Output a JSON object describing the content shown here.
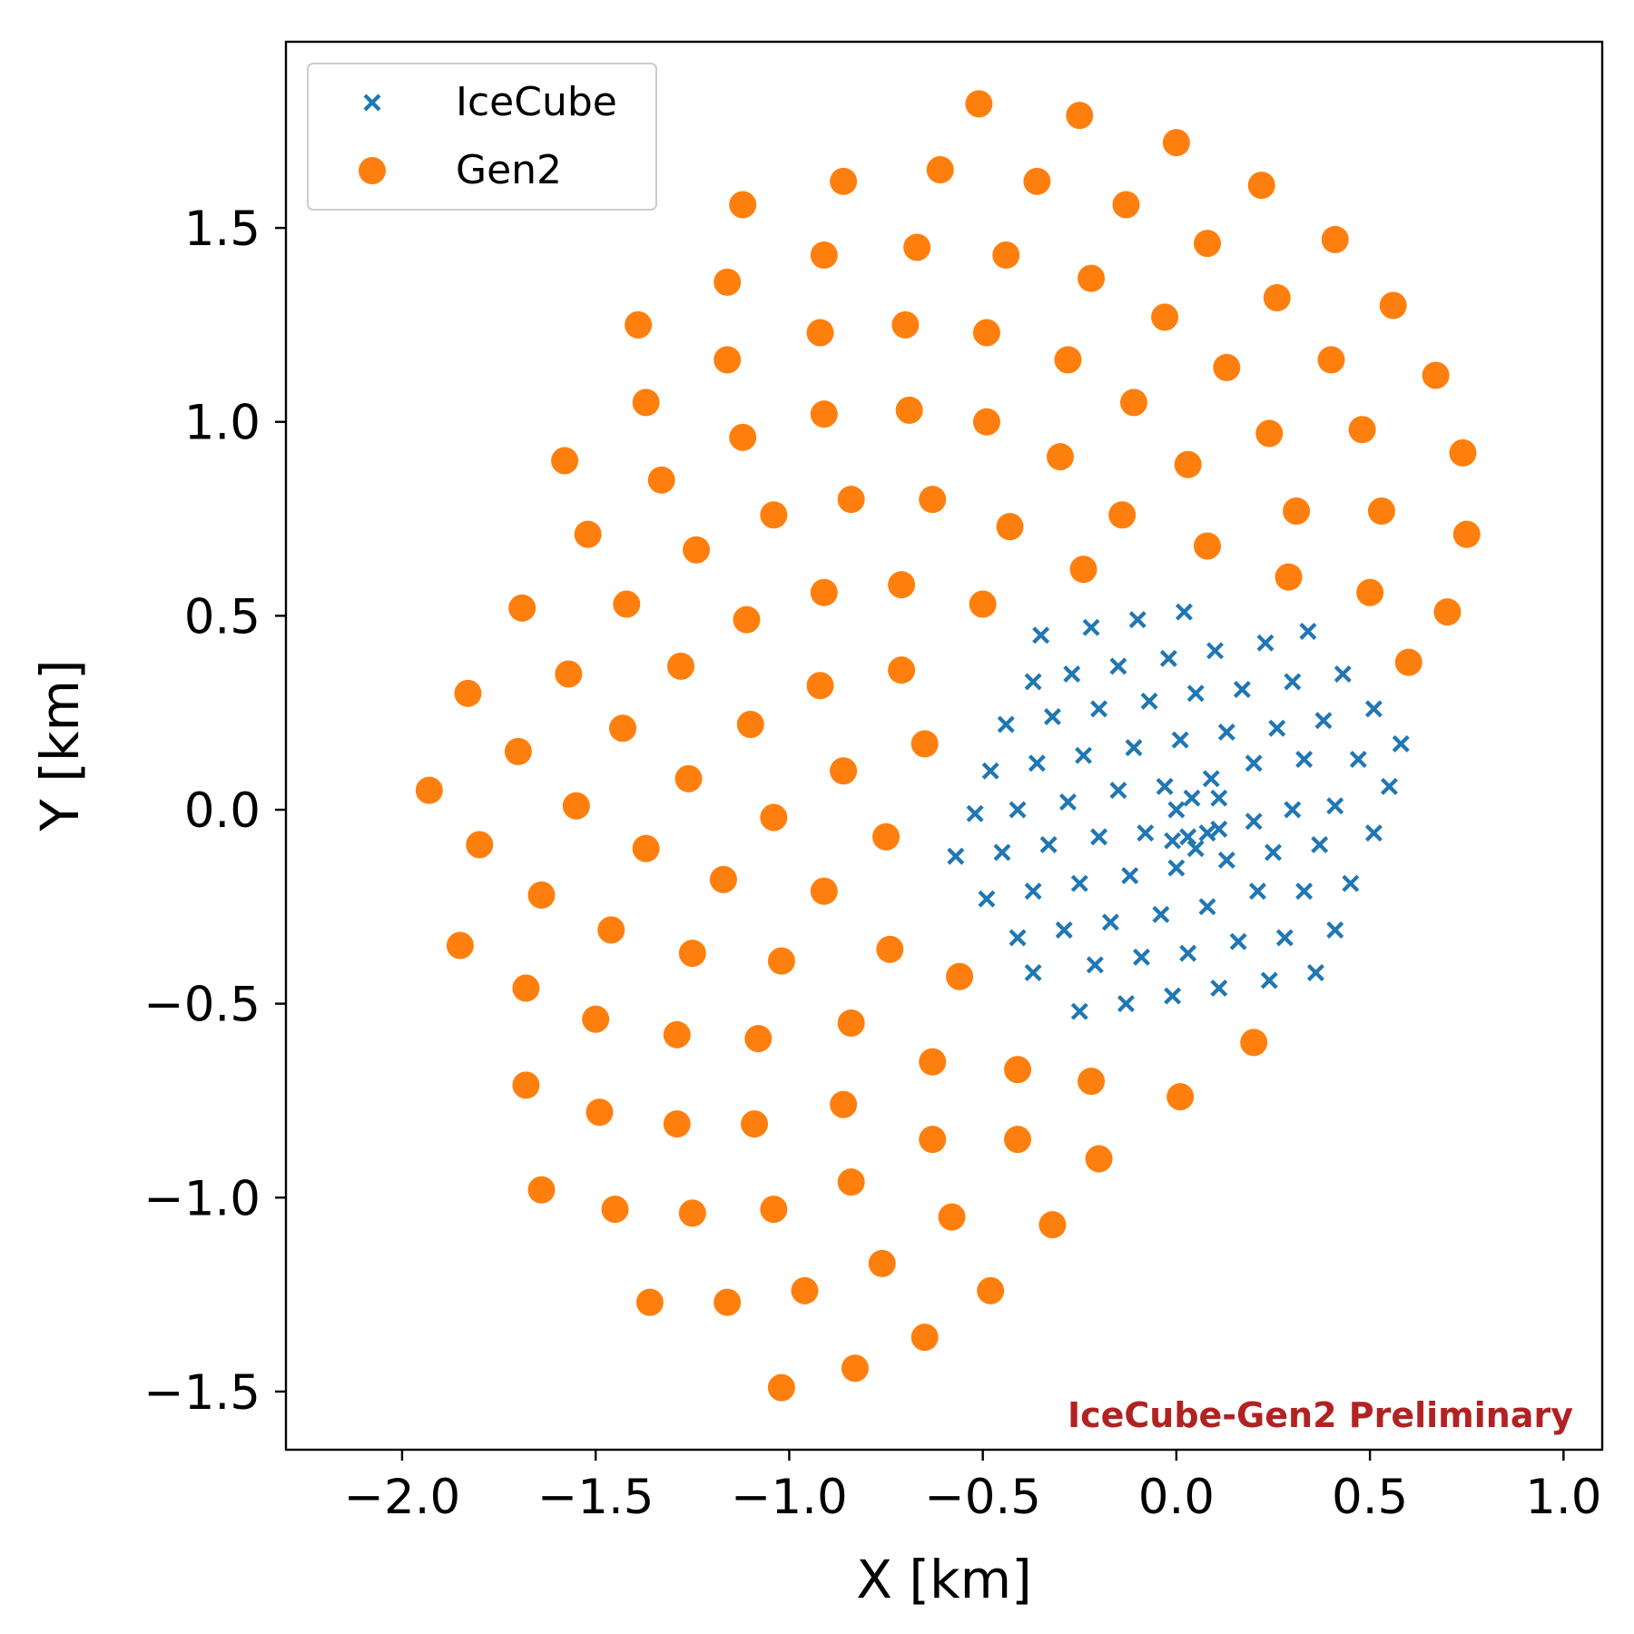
{
  "chart_data": {
    "type": "scatter",
    "title": "",
    "xlabel": "X [km]",
    "ylabel": "Y [km]",
    "xlim": [
      -2.3,
      1.1
    ],
    "ylim": [
      -1.65,
      1.98
    ],
    "xticks": [
      -2.0,
      -1.5,
      -1.0,
      -0.5,
      0.0,
      0.5,
      1.0
    ],
    "yticks": [
      -1.5,
      -1.0,
      -0.5,
      0.0,
      0.5,
      1.0,
      1.5
    ],
    "xtick_labels": [
      "−2.0",
      "−1.5",
      "−1.0",
      "−0.5",
      "0.0",
      "0.5",
      "1.0"
    ],
    "ytick_labels": [
      "−1.5",
      "−1.0",
      "−0.5",
      "0.0",
      "0.5",
      "1.0",
      "1.5"
    ],
    "grid": false,
    "legend_position": "top-left",
    "annotation": {
      "text": "IceCube-Gen2 Preliminary",
      "position": "bottom-right",
      "color": "#b22222"
    },
    "series": [
      {
        "name": "IceCube",
        "marker": "x",
        "color": "#1f77b4",
        "points": [
          [
            -0.35,
            0.45
          ],
          [
            -0.22,
            0.47
          ],
          [
            -0.1,
            0.49
          ],
          [
            0.02,
            0.51
          ],
          [
            0.23,
            0.43
          ],
          [
            0.34,
            0.46
          ],
          [
            -0.37,
            0.33
          ],
          [
            -0.27,
            0.35
          ],
          [
            -0.15,
            0.37
          ],
          [
            -0.02,
            0.39
          ],
          [
            0.1,
            0.41
          ],
          [
            0.17,
            0.31
          ],
          [
            0.3,
            0.33
          ],
          [
            0.43,
            0.35
          ],
          [
            -0.44,
            0.22
          ],
          [
            -0.32,
            0.24
          ],
          [
            -0.2,
            0.26
          ],
          [
            -0.07,
            0.28
          ],
          [
            0.05,
            0.3
          ],
          [
            0.13,
            0.2
          ],
          [
            0.26,
            0.21
          ],
          [
            0.38,
            0.23
          ],
          [
            0.51,
            0.26
          ],
          [
            0.58,
            0.17
          ],
          [
            -0.48,
            0.1
          ],
          [
            -0.36,
            0.12
          ],
          [
            -0.24,
            0.14
          ],
          [
            -0.11,
            0.16
          ],
          [
            0.01,
            0.18
          ],
          [
            0.2,
            0.12
          ],
          [
            0.33,
            0.13
          ],
          [
            0.47,
            0.13
          ],
          [
            0.55,
            0.06
          ],
          [
            -0.52,
            -0.01
          ],
          [
            -0.41,
            0.0
          ],
          [
            -0.28,
            0.02
          ],
          [
            -0.15,
            0.05
          ],
          [
            -0.03,
            0.06
          ],
          [
            0.0,
            0.0
          ],
          [
            0.04,
            0.03
          ],
          [
            0.09,
            0.08
          ],
          [
            0.11,
            0.03
          ],
          [
            0.3,
            0.0
          ],
          [
            0.41,
            0.01
          ],
          [
            0.51,
            -0.06
          ],
          [
            -0.57,
            -0.12
          ],
          [
            -0.45,
            -0.11
          ],
          [
            -0.33,
            -0.09
          ],
          [
            -0.2,
            -0.07
          ],
          [
            -0.08,
            -0.06
          ],
          [
            -0.01,
            -0.08
          ],
          [
            0.03,
            -0.07
          ],
          [
            0.05,
            -0.1
          ],
          [
            0.08,
            -0.06
          ],
          [
            0.11,
            -0.05
          ],
          [
            0.13,
            -0.13
          ],
          [
            0.2,
            -0.03
          ],
          [
            0.25,
            -0.11
          ],
          [
            0.37,
            -0.09
          ],
          [
            -0.49,
            -0.23
          ],
          [
            -0.37,
            -0.21
          ],
          [
            -0.25,
            -0.19
          ],
          [
            -0.12,
            -0.17
          ],
          [
            0.0,
            -0.15
          ],
          [
            0.08,
            -0.25
          ],
          [
            0.21,
            -0.21
          ],
          [
            0.33,
            -0.21
          ],
          [
            0.45,
            -0.19
          ],
          [
            -0.41,
            -0.33
          ],
          [
            -0.29,
            -0.31
          ],
          [
            -0.17,
            -0.29
          ],
          [
            -0.04,
            -0.27
          ],
          [
            0.16,
            -0.34
          ],
          [
            0.28,
            -0.33
          ],
          [
            0.41,
            -0.31
          ],
          [
            -0.37,
            -0.42
          ],
          [
            -0.21,
            -0.4
          ],
          [
            -0.09,
            -0.38
          ],
          [
            0.03,
            -0.37
          ],
          [
            0.11,
            -0.46
          ],
          [
            0.24,
            -0.44
          ],
          [
            0.36,
            -0.42
          ],
          [
            -0.25,
            -0.52
          ],
          [
            -0.13,
            -0.5
          ],
          [
            -0.01,
            -0.48
          ]
        ]
      },
      {
        "name": "Gen2",
        "marker": "o",
        "color": "#ff7f0e",
        "points": [
          [
            -0.51,
            1.82
          ],
          [
            -0.25,
            1.79
          ],
          [
            0.0,
            1.72
          ],
          [
            0.22,
            1.61
          ],
          [
            0.41,
            1.47
          ],
          [
            0.56,
            1.3
          ],
          [
            0.67,
            1.12
          ],
          [
            0.74,
            0.92
          ],
          [
            0.75,
            0.71
          ],
          [
            0.7,
            0.51
          ],
          [
            0.6,
            0.38
          ],
          [
            -0.86,
            1.62
          ],
          [
            -0.61,
            1.65
          ],
          [
            -0.36,
            1.62
          ],
          [
            -0.13,
            1.56
          ],
          [
            0.08,
            1.46
          ],
          [
            0.26,
            1.32
          ],
          [
            0.4,
            1.16
          ],
          [
            0.48,
            0.98
          ],
          [
            0.53,
            0.77
          ],
          [
            0.5,
            0.56
          ],
          [
            -1.12,
            1.56
          ],
          [
            -0.91,
            1.43
          ],
          [
            -0.67,
            1.45
          ],
          [
            -0.44,
            1.43
          ],
          [
            -0.22,
            1.37
          ],
          [
            -0.03,
            1.27
          ],
          [
            0.13,
            1.14
          ],
          [
            0.24,
            0.97
          ],
          [
            0.31,
            0.77
          ],
          [
            0.29,
            0.6
          ],
          [
            -1.16,
            1.36
          ],
          [
            -0.92,
            1.23
          ],
          [
            -0.7,
            1.25
          ],
          [
            -0.49,
            1.23
          ],
          [
            -0.28,
            1.16
          ],
          [
            -0.11,
            1.05
          ],
          [
            0.03,
            0.89
          ],
          [
            0.08,
            0.68
          ],
          [
            -1.39,
            1.25
          ],
          [
            -1.37,
            1.05
          ],
          [
            -1.16,
            1.16
          ],
          [
            -1.12,
            0.96
          ],
          [
            -0.91,
            1.02
          ],
          [
            -0.69,
            1.03
          ],
          [
            -0.49,
            1.0
          ],
          [
            -0.3,
            0.91
          ],
          [
            -0.14,
            0.76
          ],
          [
            -0.24,
            0.62
          ],
          [
            -1.58,
            0.9
          ],
          [
            -1.33,
            0.85
          ],
          [
            -1.04,
            0.76
          ],
          [
            -0.84,
            0.8
          ],
          [
            -0.63,
            0.8
          ],
          [
            -0.43,
            0.73
          ],
          [
            -1.52,
            0.71
          ],
          [
            -1.24,
            0.67
          ],
          [
            -0.91,
            0.56
          ],
          [
            -0.71,
            0.58
          ],
          [
            -0.5,
            0.53
          ],
          [
            -1.69,
            0.52
          ],
          [
            -1.42,
            0.53
          ],
          [
            -1.11,
            0.49
          ],
          [
            -1.83,
            0.3
          ],
          [
            -1.57,
            0.35
          ],
          [
            -1.28,
            0.37
          ],
          [
            -0.92,
            0.32
          ],
          [
            -0.71,
            0.36
          ],
          [
            -1.7,
            0.15
          ],
          [
            -1.43,
            0.21
          ],
          [
            -1.1,
            0.22
          ],
          [
            -0.86,
            0.1
          ],
          [
            -0.65,
            0.17
          ],
          [
            -1.93,
            0.05
          ],
          [
            -1.55,
            0.01
          ],
          [
            -1.26,
            0.08
          ],
          [
            -1.04,
            -0.02
          ],
          [
            -0.75,
            -0.07
          ],
          [
            -1.8,
            -0.09
          ],
          [
            -1.37,
            -0.1
          ],
          [
            -1.17,
            -0.18
          ],
          [
            -0.91,
            -0.21
          ],
          [
            -1.64,
            -0.22
          ],
          [
            -1.46,
            -0.31
          ],
          [
            -1.25,
            -0.37
          ],
          [
            -1.02,
            -0.39
          ],
          [
            -0.74,
            -0.36
          ],
          [
            -0.56,
            -0.43
          ],
          [
            -1.85,
            -0.35
          ],
          [
            -1.68,
            -0.46
          ],
          [
            -1.5,
            -0.54
          ],
          [
            -1.29,
            -0.58
          ],
          [
            -1.08,
            -0.59
          ],
          [
            -0.84,
            -0.55
          ],
          [
            -0.63,
            -0.65
          ],
          [
            -0.41,
            -0.67
          ],
          [
            -0.22,
            -0.7
          ],
          [
            0.01,
            -0.74
          ],
          [
            0.2,
            -0.6
          ],
          [
            -1.68,
            -0.71
          ],
          [
            -1.49,
            -0.78
          ],
          [
            -1.29,
            -0.81
          ],
          [
            -1.09,
            -0.81
          ],
          [
            -0.86,
            -0.76
          ],
          [
            -0.63,
            -0.85
          ],
          [
            -0.41,
            -0.85
          ],
          [
            -0.2,
            -0.9
          ],
          [
            -1.64,
            -0.98
          ],
          [
            -1.45,
            -1.03
          ],
          [
            -1.25,
            -1.04
          ],
          [
            -1.04,
            -1.03
          ],
          [
            -0.84,
            -0.96
          ],
          [
            -0.58,
            -1.05
          ],
          [
            -0.32,
            -1.07
          ],
          [
            -1.36,
            -1.27
          ],
          [
            -1.16,
            -1.27
          ],
          [
            -0.96,
            -1.24
          ],
          [
            -0.76,
            -1.17
          ],
          [
            -0.48,
            -1.24
          ],
          [
            -1.02,
            -1.49
          ],
          [
            -0.83,
            -1.44
          ],
          [
            -0.65,
            -1.36
          ]
        ]
      }
    ]
  }
}
